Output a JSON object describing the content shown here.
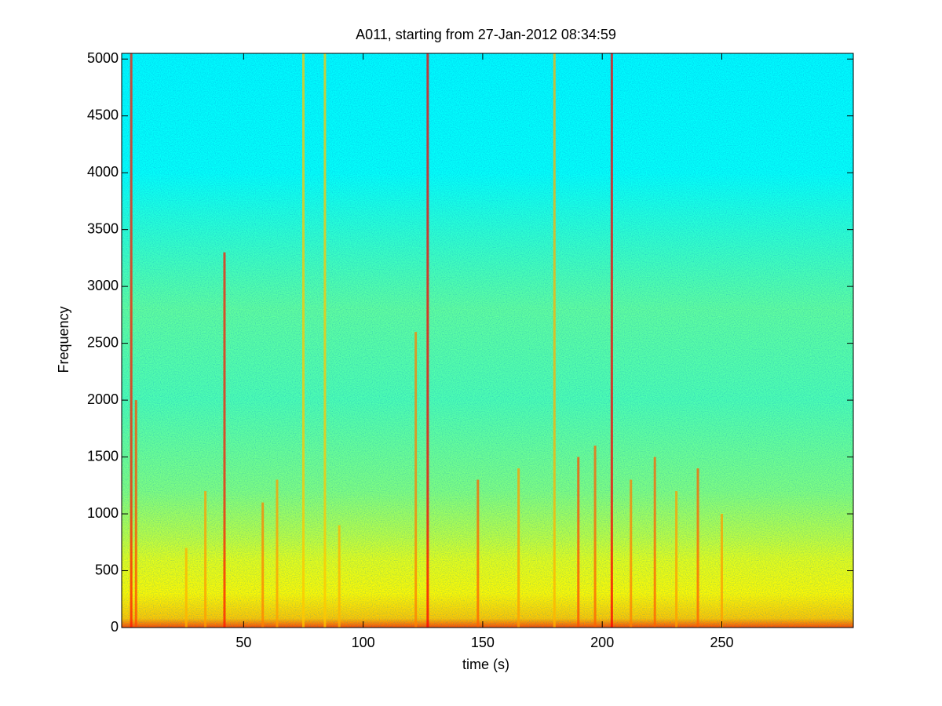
{
  "chart_data": {
    "type": "spectrogram",
    "title": "A011, starting from 27-Jan-2012 08:34:59",
    "x_label": "time (s)",
    "y_label": "Frequency",
    "xlim": [
      -1,
      305
    ],
    "xticks": [
      50,
      100,
      150,
      200,
      250
    ],
    "ylim": [
      0,
      5050
    ],
    "yticks": [
      0,
      500,
      1000,
      1500,
      2000,
      2500,
      3000,
      3500,
      4000,
      4500,
      5000
    ],
    "colormap": "jet",
    "frequency_profile": {
      "frequencies": [
        0,
        80,
        300,
        600,
        800,
        1200,
        2000,
        2800,
        3200,
        3600,
        4000,
        5050
      ],
      "levels": [
        0.8,
        0.68,
        0.63,
        0.6,
        0.56,
        0.5,
        0.45,
        0.47,
        0.44,
        0.41,
        0.38,
        0.37
      ]
    },
    "events": {
      "times": [
        3,
        5,
        26,
        34,
        42,
        58,
        64,
        75,
        84,
        90,
        122,
        127,
        148,
        165,
        180,
        190,
        197,
        204,
        212,
        222,
        231,
        240,
        250
      ],
      "top_frequencies": [
        5050,
        2000,
        700,
        1200,
        3300,
        1100,
        1300,
        5050,
        5050,
        900,
        2600,
        5050,
        1300,
        1400,
        5050,
        1500,
        1600,
        5050,
        1300,
        1500,
        1200,
        1400,
        1000
      ],
      "levels": [
        0.85,
        0.8,
        0.7,
        0.72,
        0.85,
        0.75,
        0.72,
        0.68,
        0.68,
        0.7,
        0.75,
        0.88,
        0.78,
        0.72,
        0.7,
        0.8,
        0.78,
        0.88,
        0.75,
        0.78,
        0.72,
        0.78,
        0.72
      ]
    }
  }
}
